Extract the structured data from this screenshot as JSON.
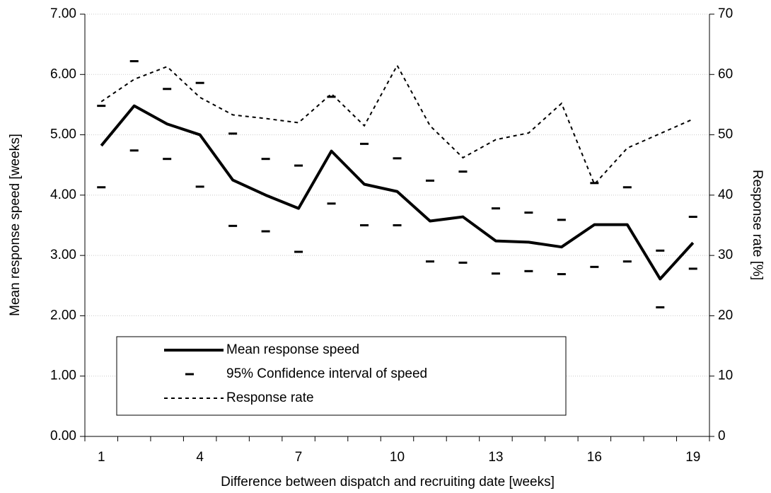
{
  "chart_data": {
    "type": "line",
    "x_label": "Difference between dispatch and recruiting date [weeks]",
    "y_label": "Mean response speed [weeks]",
    "y2_label": "Response rate [%]",
    "categories": [
      1,
      null,
      null,
      4,
      null,
      null,
      7,
      null,
      null,
      10,
      null,
      null,
      13,
      null,
      null,
      16,
      null,
      null,
      19
    ],
    "ylim": [
      0,
      7
    ],
    "yticks": [
      {
        "value": 0,
        "label": "0.00"
      },
      {
        "value": 1,
        "label": "1.00"
      },
      {
        "value": 2,
        "label": "2.00"
      },
      {
        "value": 3,
        "label": "3.00"
      },
      {
        "value": 4,
        "label": "4.00"
      },
      {
        "value": 5,
        "label": "5.00"
      },
      {
        "value": 6,
        "label": "6.00"
      },
      {
        "value": 7,
        "label": "7.00"
      }
    ],
    "y2lim": [
      0,
      70
    ],
    "y2ticks": [
      0,
      10,
      20,
      30,
      40,
      50,
      60,
      70
    ],
    "grid": true,
    "series": [
      {
        "name": "Mean response speed",
        "color": "#000000",
        "values": [
          4.82,
          5.48,
          5.18,
          5.0,
          4.25,
          4.0,
          3.78,
          4.73,
          4.18,
          4.06,
          3.57,
          3.64,
          3.24,
          3.22,
          3.14,
          3.51,
          3.51,
          2.61,
          3.21
        ]
      },
      {
        "name": "95% Confidence interval of speed",
        "color": "#000000",
        "upper": [
          5.48,
          6.22,
          5.76,
          5.86,
          5.02,
          4.6,
          4.49,
          5.63,
          4.85,
          4.61,
          4.24,
          4.39,
          3.78,
          3.71,
          3.59,
          4.2,
          4.13,
          3.08,
          3.64
        ],
        "lower": [
          4.13,
          4.74,
          4.6,
          4.14,
          3.49,
          3.4,
          3.06,
          3.86,
          3.5,
          3.5,
          2.9,
          2.88,
          2.7,
          2.74,
          2.69,
          2.81,
          2.9,
          2.14,
          2.78
        ]
      },
      {
        "name": "Response rate",
        "color": "#000000",
        "axis": "y2",
        "values": [
          55.5,
          59.2,
          61.3,
          56.2,
          53.3,
          52.7,
          52.0,
          56.8,
          51.5,
          61.5,
          51.5,
          46.2,
          49.2,
          50.3,
          55.2,
          41.8,
          47.8,
          50.2,
          52.6
        ]
      }
    ]
  }
}
